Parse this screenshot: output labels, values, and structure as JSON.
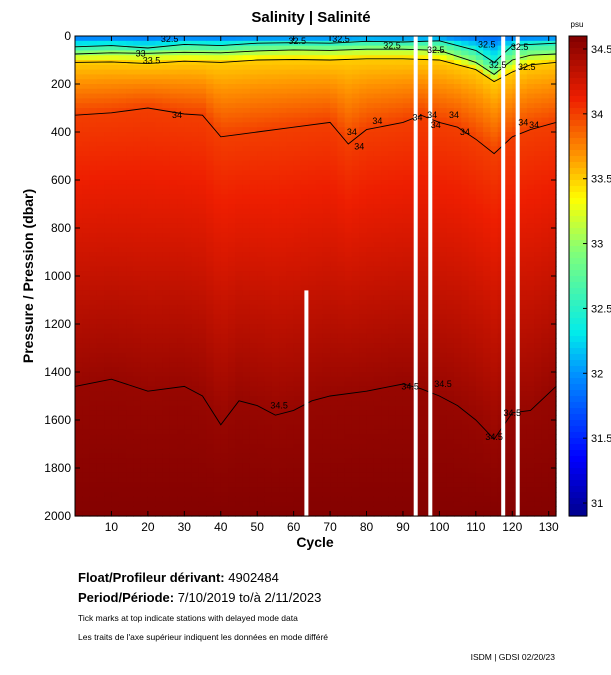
{
  "chart_data": {
    "type": "heatmap",
    "title": "Salinity | Salinité",
    "xlabel": "Cycle",
    "ylabel": "Pressure / Pression (dbar)",
    "xlim": [
      0,
      132
    ],
    "ylim": [
      2000,
      0
    ],
    "x_ticks": [
      10,
      20,
      30,
      40,
      50,
      60,
      70,
      80,
      90,
      100,
      110,
      120,
      130
    ],
    "y_ticks": [
      0,
      200,
      400,
      600,
      800,
      1000,
      1200,
      1400,
      1600,
      1800,
      2000
    ],
    "colorbar": {
      "unit": "psu",
      "range": [
        30.9,
        34.6
      ],
      "ticks": [
        "34.5",
        "34",
        "33.5",
        "33",
        "32.5",
        "32",
        "31.5",
        "31"
      ],
      "tick_values": [
        34.5,
        34.0,
        33.5,
        33.0,
        32.5,
        32.0,
        31.5,
        31.0
      ]
    },
    "contour_levels": [
      "32.5",
      "33",
      "33.5",
      "34",
      "34.5"
    ],
    "contours": [
      {
        "level": 32.5,
        "cycles": [
          0,
          10,
          20,
          30,
          40,
          50,
          60,
          70,
          80,
          90,
          100,
          110,
          115,
          120,
          125,
          132
        ],
        "pressure": [
          45,
          40,
          50,
          35,
          40,
          30,
          28,
          30,
          22,
          25,
          20,
          60,
          110,
          40,
          35,
          30
        ]
      },
      {
        "level": 33.0,
        "cycles": [
          0,
          10,
          20,
          30,
          40,
          50,
          60,
          70,
          80,
          90,
          100,
          110,
          115,
          120,
          125,
          132
        ],
        "pressure": [
          75,
          70,
          72,
          68,
          70,
          62,
          58,
          60,
          55,
          55,
          60,
          110,
          160,
          100,
          80,
          75
        ]
      },
      {
        "level": 33.5,
        "cycles": [
          0,
          10,
          20,
          30,
          40,
          50,
          60,
          70,
          80,
          90,
          100,
          110,
          115,
          120,
          125,
          132
        ],
        "pressure": [
          110,
          108,
          115,
          105,
          110,
          100,
          98,
          100,
          95,
          95,
          100,
          140,
          190,
          150,
          120,
          110
        ]
      },
      {
        "level": 34.0,
        "cycles": [
          0,
          10,
          20,
          30,
          35,
          40,
          45,
          50,
          60,
          70,
          75,
          80,
          90,
          95,
          100,
          105,
          110,
          115,
          120,
          125,
          132
        ],
        "pressure": [
          330,
          320,
          300,
          325,
          330,
          420,
          410,
          400,
          380,
          360,
          450,
          390,
          360,
          330,
          360,
          380,
          430,
          490,
          420,
          390,
          360
        ]
      },
      {
        "level": 34.5,
        "cycles": [
          0,
          10,
          20,
          30,
          35,
          40,
          45,
          50,
          55,
          60,
          65,
          70,
          80,
          90,
          95,
          100,
          105,
          110,
          115,
          120,
          125,
          132
        ],
        "pressure": [
          1460,
          1430,
          1480,
          1460,
          1500,
          1620,
          1520,
          1540,
          1580,
          1560,
          1520,
          1500,
          1480,
          1450,
          1470,
          1500,
          1540,
          1600,
          1680,
          1570,
          1560,
          1460
        ]
      }
    ],
    "contour_labels": [
      {
        "text": "32.5",
        "cycle": 26,
        "pressure": 12
      },
      {
        "text": "32.5",
        "cycle": 61,
        "pressure": 20
      },
      {
        "text": "32.5",
        "cycle": 73,
        "pressure": 12
      },
      {
        "text": "32.5",
        "cycle": 87,
        "pressure": 40
      },
      {
        "text": "32.5",
        "cycle": 99,
        "pressure": 58
      },
      {
        "text": "32.5",
        "cycle": 113,
        "pressure": 35
      },
      {
        "text": "32.5",
        "cycle": 122,
        "pressure": 45
      },
      {
        "text": "32.5",
        "cycle": 116,
        "pressure": 120
      },
      {
        "text": "32.5",
        "cycle": 124,
        "pressure": 130
      },
      {
        "text": "33",
        "cycle": 18,
        "pressure": 72
      },
      {
        "text": "33.5",
        "cycle": 21,
        "pressure": 102
      },
      {
        "text": "34",
        "cycle": 28,
        "pressure": 330
      },
      {
        "text": "34",
        "cycle": 76,
        "pressure": 400
      },
      {
        "text": "34",
        "cycle": 83,
        "pressure": 355
      },
      {
        "text": "34",
        "cycle": 94,
        "pressure": 340
      },
      {
        "text": "34",
        "cycle": 98,
        "pressure": 330
      },
      {
        "text": "34",
        "cycle": 104,
        "pressure": 330
      },
      {
        "text": "34",
        "cycle": 99,
        "pressure": 370
      },
      {
        "text": "34",
        "cycle": 107,
        "pressure": 400
      },
      {
        "text": "34",
        "cycle": 78,
        "pressure": 460
      },
      {
        "text": "34",
        "cycle": 123,
        "pressure": 360
      },
      {
        "text": "34",
        "cycle": 126,
        "pressure": 370
      },
      {
        "text": "34.5",
        "cycle": 56,
        "pressure": 1540
      },
      {
        "text": "34.5",
        "cycle": 92,
        "pressure": 1460
      },
      {
        "text": "34.5",
        "cycle": 101,
        "pressure": 1450
      },
      {
        "text": "34.5",
        "cycle": 115,
        "pressure": 1670
      },
      {
        "text": "34.5",
        "cycle": 120,
        "pressure": 1570
      }
    ],
    "missing_profiles": [
      {
        "cycle": 63.5,
        "from_pressure": 1060
      },
      {
        "cycle": 93.5,
        "from_pressure": 0
      },
      {
        "cycle": 97.5,
        "from_pressure": 0
      },
      {
        "cycle": 117.5,
        "from_pressure": 0
      },
      {
        "cycle": 121.5,
        "from_pressure": 0
      }
    ]
  },
  "info": {
    "float_label": "Float/Profileur dérivant:",
    "float_value": "4902484",
    "period_label": "Period/Période:",
    "period_value": "7/10/2019  to/à  2/11/2023",
    "note_en": "Tick marks at top indicate stations with delayed mode data",
    "note_fr": "Les traits de l'axe supérieur indiquent les données en mode différé",
    "credit": "ISDM | GDSI 02/20/23"
  }
}
